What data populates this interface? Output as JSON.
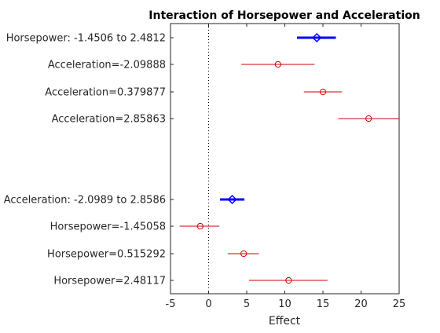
{
  "chart_data": {
    "type": "interaction-effects-plot",
    "title": "Interaction of Horsepower and Acceleration",
    "xlabel": "Effect",
    "xlim": [
      -5,
      25
    ],
    "xticks": [
      -5,
      0,
      5,
      10,
      15,
      20,
      25
    ],
    "reference_line_x": 0,
    "rows": [
      {
        "label": "Horsepower: -1.4506 to 2.4812",
        "estimate": 14.2,
        "ci": [
          11.6,
          16.7
        ],
        "kind": "main",
        "color": "#0000ff"
      },
      {
        "label": "Acceleration=-2.09888",
        "estimate": 9.1,
        "ci": [
          4.3,
          13.9
        ],
        "kind": "conditional",
        "color": "#cc0000"
      },
      {
        "label": "Acceleration=0.379877",
        "estimate": 15.0,
        "ci": [
          12.5,
          17.5
        ],
        "kind": "conditional",
        "color": "#cc0000"
      },
      {
        "label": "Acceleration=2.85863",
        "estimate": 21.0,
        "ci": [
          17.0,
          25.0
        ],
        "kind": "conditional",
        "color": "#cc0000"
      },
      {
        "label": "Acceleration: -2.0989 to 2.8586",
        "estimate": 3.1,
        "ci": [
          1.5,
          4.7
        ],
        "kind": "main",
        "color": "#0000ff"
      },
      {
        "label": "Horsepower=-1.45058",
        "estimate": -1.1,
        "ci": [
          -3.8,
          1.4
        ],
        "kind": "conditional",
        "color": "#cc0000"
      },
      {
        "label": "Horsepower=0.515292",
        "estimate": 4.6,
        "ci": [
          2.5,
          6.6
        ],
        "kind": "conditional",
        "color": "#cc0000"
      },
      {
        "label": "Horsepower=2.48117",
        "estimate": 10.5,
        "ci": [
          5.3,
          15.6
        ],
        "kind": "conditional",
        "color": "#cc0000"
      }
    ]
  }
}
